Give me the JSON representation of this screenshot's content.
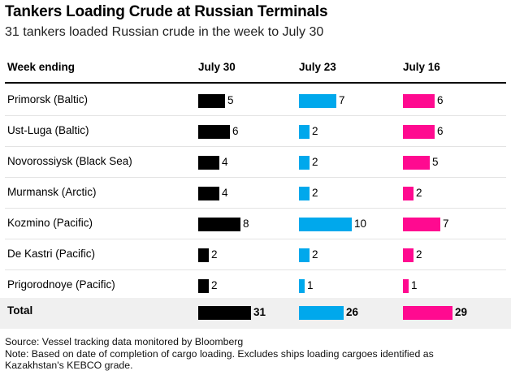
{
  "title": "Tankers Loading Crude at Russian Terminals",
  "subtitle": "31 tankers loaded Russian crude in the week to July 30",
  "columns": {
    "label_header": "Week ending",
    "weeks": [
      "July 30",
      "July 23",
      "July 16"
    ]
  },
  "colors": {
    "July 30": "#000000",
    "July 23": "#00a8ec",
    "July 16": "#ff0a90"
  },
  "chart_data": {
    "type": "table",
    "categories": [
      "Primorsk (Baltic)",
      "Ust-Luga (Baltic)",
      "Novorossiysk (Black Sea)",
      "Murmansk (Arctic)",
      "Kozmino (Pacific)",
      "De Kastri (Pacific)",
      "Prigorodnoye (Pacific)"
    ],
    "series": [
      {
        "name": "July 30",
        "values": [
          5,
          6,
          4,
          4,
          8,
          2,
          2
        ]
      },
      {
        "name": "July 23",
        "values": [
          7,
          2,
          2,
          2,
          10,
          2,
          1
        ]
      },
      {
        "name": "July 16",
        "values": [
          6,
          6,
          5,
          2,
          7,
          2,
          1
        ]
      }
    ],
    "total": {
      "label": "Total",
      "values": [
        31,
        26,
        29
      ]
    }
  },
  "footnotes": {
    "source": "Source: Vessel tracking data monitored by Bloomberg",
    "note_line1": "Note: Based on date of completion of cargo loading. Excludes ships loading cargoes identified as",
    "note_line2": "Kazakhstan's KEBCO grade."
  }
}
